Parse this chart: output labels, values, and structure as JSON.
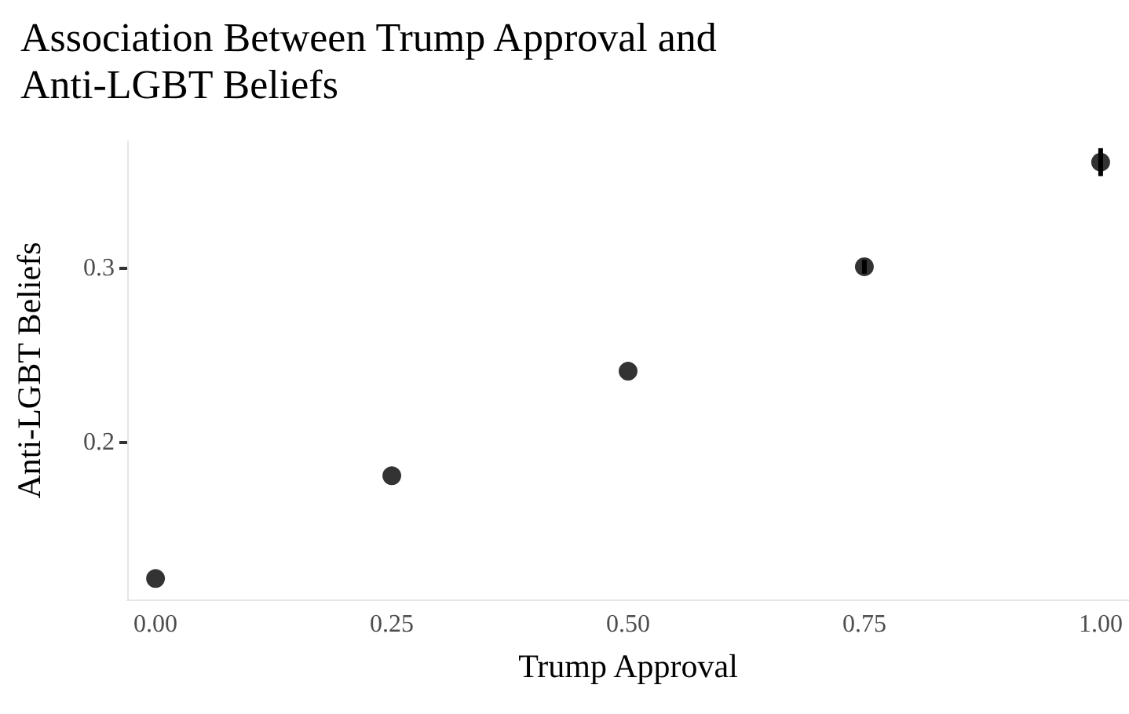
{
  "chart_data": {
    "type": "scatter",
    "title": "Association Between Trump Approval and\nAnti-LGBT Beliefs",
    "xlabel": "Trump Approval",
    "ylabel": "Anti-LGBT Beliefs",
    "x": [
      0,
      0.25,
      0.5,
      0.75,
      1
    ],
    "values": [
      0.122,
      0.181,
      0.241,
      0.301,
      0.361
    ],
    "errors": [
      null,
      null,
      null,
      0.004,
      0.008
    ],
    "color": "#000000",
    "marker": "circle",
    "grid": false,
    "xticks": [
      {
        "value": 0,
        "label": "0.00"
      },
      {
        "value": 0.25,
        "label": "0.25"
      },
      {
        "value": 0.5,
        "label": "0.50"
      },
      {
        "value": 0.75,
        "label": "0.75"
      },
      {
        "value": 1,
        "label": "1.00"
      }
    ],
    "xlim": [
      -0.03,
      1.03
    ],
    "ylim": [
      0.11,
      0.373
    ],
    "yticks": [
      0.2,
      0.3
    ]
  }
}
